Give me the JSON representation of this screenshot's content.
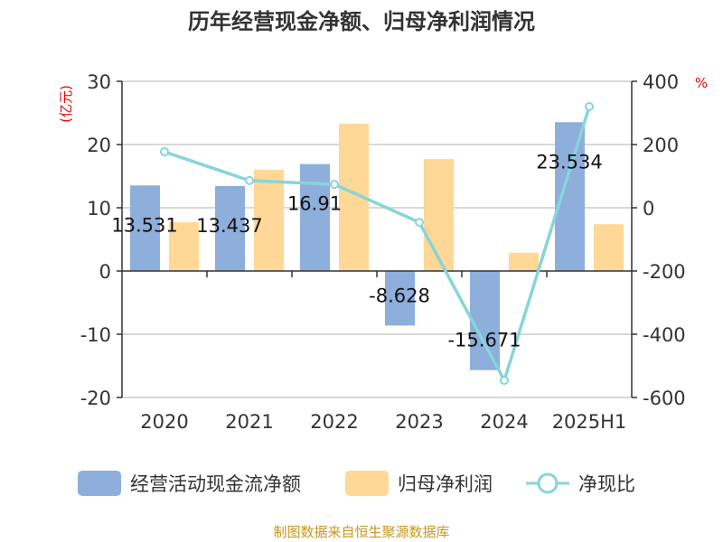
{
  "chart_data": {
    "type": "bar",
    "title": "历年经营现金净额、归母净利润情况",
    "categories": [
      "2020",
      "2021",
      "2022",
      "2023",
      "2024",
      "2025H1"
    ],
    "series": [
      {
        "name": "经营活动现金流净额",
        "axis": "left",
        "type": "bar",
        "color": "#8eaedb",
        "values": [
          13.531,
          13.437,
          16.91,
          -8.628,
          -15.671,
          23.534
        ],
        "labels": [
          "13.531",
          "13.437",
          "16.91",
          "-8.628",
          "-15.671",
          "23.534"
        ]
      },
      {
        "name": "归母净利润",
        "axis": "left",
        "type": "bar",
        "color": "#ffd796",
        "values": [
          7.7,
          16.0,
          23.3,
          17.7,
          2.9,
          7.4
        ]
      },
      {
        "name": "净现比",
        "axis": "right",
        "type": "line",
        "color": "#86d5d9",
        "values": [
          177,
          86,
          74,
          -46,
          -546,
          320
        ]
      }
    ],
    "ylabel_left": "(亿元)",
    "ylabel_right": "%",
    "ylim_left": [
      -20,
      30
    ],
    "yticks_left": [
      "30",
      "20",
      "10",
      "0",
      "-10",
      "-20"
    ],
    "ylim_right": [
      -600,
      400
    ],
    "yticks_right": [
      "400",
      "200",
      "0",
      "-200",
      "-400",
      "-600"
    ],
    "grid": true,
    "legend_placement": "bottom"
  },
  "source": "制图数据来自恒生聚源数据库"
}
